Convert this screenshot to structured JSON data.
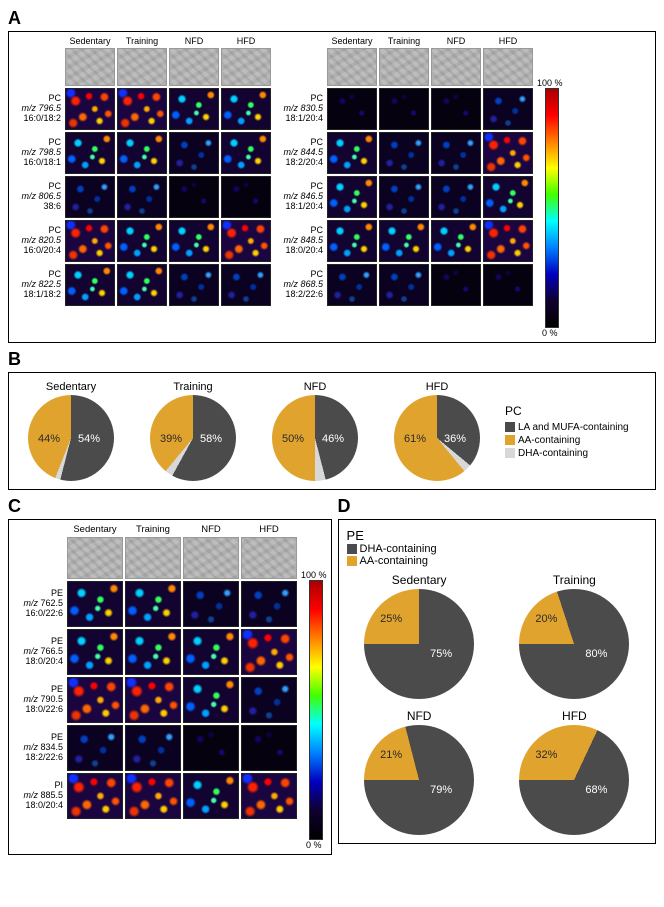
{
  "colors": {
    "dark": "#4b4b4b",
    "yellow": "#e0a42e",
    "light": "#d8d8d8",
    "white_pct": "#ffffff",
    "black_pct": "#2a2a2a"
  },
  "conditions": [
    "Sedentary",
    "Training",
    "NFD",
    "HFD"
  ],
  "panelA": {
    "label": "A",
    "colorbar_top": "100 %",
    "colorbar_bot": "0 %",
    "left_rows": [
      {
        "name": "PC",
        "mz": "m/z 796.5",
        "acyl": "16:0/18:2",
        "heat": [
          "high",
          "high",
          "med",
          "med"
        ]
      },
      {
        "name": "PC",
        "mz": "m/z 798.5",
        "acyl": "16:0/18:1",
        "heat": [
          "med",
          "med",
          "low",
          "med"
        ]
      },
      {
        "name": "PC",
        "mz": "m/z 806.5",
        "acyl": "38:6",
        "heat": [
          "low",
          "low",
          "vlow",
          "vlow"
        ]
      },
      {
        "name": "PC",
        "mz": "m/z 820.5",
        "acyl": "16:0/20:4",
        "heat": [
          "high",
          "med",
          "med",
          "high"
        ]
      },
      {
        "name": "PC",
        "mz": "m/z 822.5",
        "acyl": "18:1/18:2",
        "heat": [
          "med",
          "med",
          "low",
          "low"
        ]
      }
    ],
    "right_rows": [
      {
        "name": "PC",
        "mz": "m/z 830.5",
        "acyl": "18:1/20:4",
        "heat": [
          "vlow",
          "vlow",
          "vlow",
          "low"
        ]
      },
      {
        "name": "PC",
        "mz": "m/z 844.5",
        "acyl": "18:2/20:4",
        "heat": [
          "med",
          "low",
          "low",
          "high"
        ]
      },
      {
        "name": "PC",
        "mz": "m/z 846.5",
        "acyl": "18:1/20:4",
        "heat": [
          "med",
          "low",
          "low",
          "med"
        ]
      },
      {
        "name": "PC",
        "mz": "m/z 848.5",
        "acyl": "18:0/20:4",
        "heat": [
          "med",
          "med",
          "med",
          "high"
        ]
      },
      {
        "name": "PC",
        "mz": "m/z 868.5",
        "acyl": "18:2/22:6",
        "heat": [
          "low",
          "low",
          "vlow",
          "vlow"
        ]
      }
    ]
  },
  "panelB": {
    "label": "B",
    "lipid_class": "PC",
    "legend": [
      {
        "label": "LA and MUFA-containing",
        "color": "#4b4b4b"
      },
      {
        "label": "AA-containing",
        "color": "#e0a42e"
      },
      {
        "label": "DHA-containing",
        "color": "#d8d8d8"
      }
    ],
    "pies": [
      {
        "name": "Sedentary",
        "dark": 54,
        "yellow": 44,
        "light": 2,
        "dark_label": "54%",
        "yellow_label": "44%"
      },
      {
        "name": "Training",
        "dark": 58,
        "yellow": 39,
        "light": 3,
        "dark_label": "58%",
        "yellow_label": "39%"
      },
      {
        "name": "NFD",
        "dark": 46,
        "yellow": 50,
        "light": 4,
        "dark_label": "46%",
        "yellow_label": "50%"
      },
      {
        "name": "HFD",
        "dark": 36,
        "yellow": 61,
        "light": 3,
        "dark_label": "36%",
        "yellow_label": "61%"
      }
    ]
  },
  "panelC": {
    "label": "C",
    "colorbar_top": "100 %",
    "colorbar_bot": "0 %",
    "rows": [
      {
        "name": "PE",
        "mz": "m/z 762.5",
        "acyl": "16:0/22:6",
        "heat": [
          "med",
          "med",
          "low",
          "low"
        ]
      },
      {
        "name": "PE",
        "mz": "m/z 766.5",
        "acyl": "18:0/20:4",
        "heat": [
          "med",
          "med",
          "med",
          "high"
        ]
      },
      {
        "name": "PE",
        "mz": "m/z 790.5",
        "acyl": "18:0/22:6",
        "heat": [
          "high",
          "high",
          "med",
          "low"
        ]
      },
      {
        "name": "PE",
        "mz": "m/z 834.5",
        "acyl": "18:2/22:6",
        "heat": [
          "low",
          "low",
          "vlow",
          "vlow"
        ]
      },
      {
        "name": "PI",
        "mz": "m/z 885.5",
        "acyl": "18:0/20:4",
        "heat": [
          "high",
          "high",
          "med",
          "high"
        ]
      }
    ]
  },
  "panelD": {
    "label": "D",
    "lipid_class": "PE",
    "legend": [
      {
        "label": "DHA-containing",
        "color": "#4b4b4b"
      },
      {
        "label": "AA-containing",
        "color": "#e0a42e"
      }
    ],
    "pies": [
      {
        "name": "Sedentary",
        "dark": 75,
        "yellow": 25,
        "dark_label": "75%",
        "yellow_label": "25%"
      },
      {
        "name": "Training",
        "dark": 80,
        "yellow": 20,
        "dark_label": "80%",
        "yellow_label": "20%"
      },
      {
        "name": "NFD",
        "dark": 79,
        "yellow": 21,
        "dark_label": "79%",
        "yellow_label": "21%"
      },
      {
        "name": "HFD",
        "dark": 68,
        "yellow": 32,
        "dark_label": "68%",
        "yellow_label": "32%"
      }
    ]
  }
}
